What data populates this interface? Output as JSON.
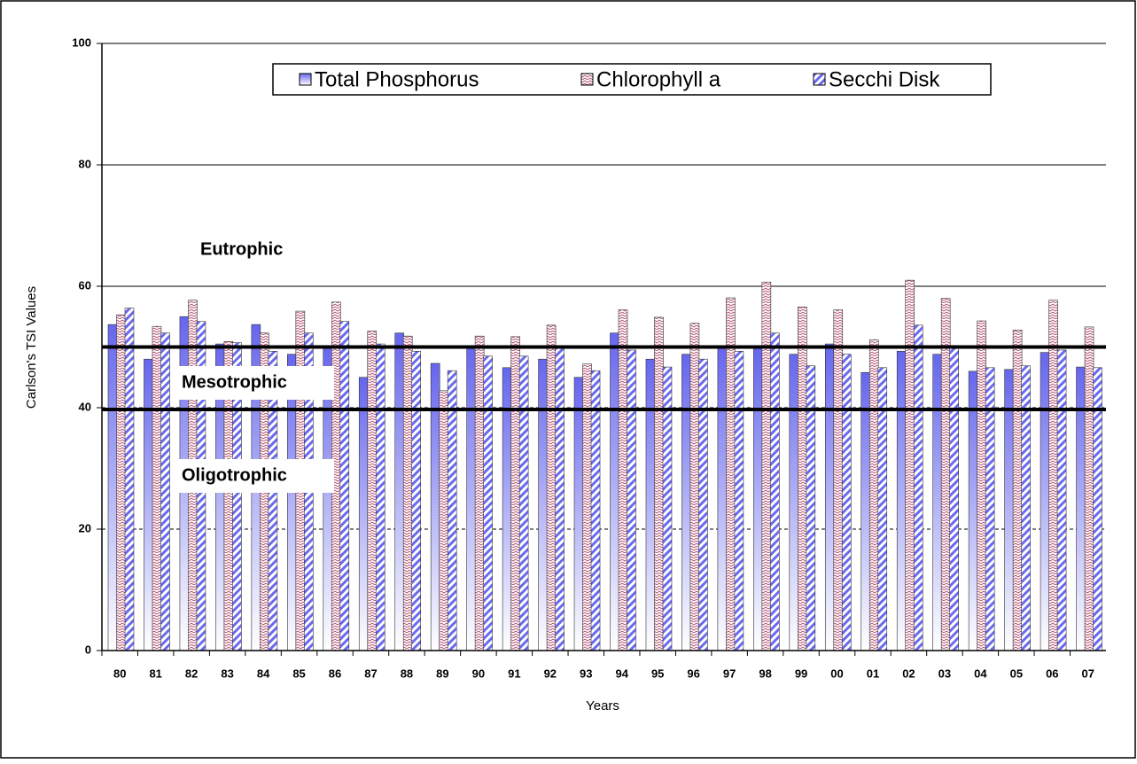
{
  "chart_data": {
    "type": "bar",
    "x_label": "Years",
    "y_label": "Carlson's TSI Values",
    "categories": [
      "80",
      "81",
      "82",
      "83",
      "84",
      "85",
      "86",
      "87",
      "88",
      "89",
      "90",
      "91",
      "92",
      "93",
      "94",
      "95",
      "96",
      "97",
      "98",
      "99",
      "00",
      "01",
      "02",
      "03",
      "04",
      "05",
      "06",
      "07"
    ],
    "series": [
      {
        "name": "Total Phosphorus",
        "color": "#6666ee",
        "values": [
          53.7,
          48.0,
          55.0,
          50.5,
          53.7,
          48.8,
          50.1,
          45.0,
          52.3,
          47.3,
          50.1,
          46.6,
          48.0,
          45.0,
          52.3,
          48.0,
          48.8,
          49.8,
          49.8,
          48.8,
          50.5,
          45.8,
          49.3,
          48.8,
          46.0,
          46.3,
          49.1,
          46.7
        ]
      },
      {
        "name": "Chlorophyll a",
        "color": "#b05070",
        "values": [
          55.3,
          53.4,
          57.7,
          50.9,
          52.3,
          55.9,
          57.4,
          52.6,
          51.8,
          42.8,
          51.8,
          51.7,
          53.6,
          47.2,
          56.1,
          54.9,
          53.9,
          58.1,
          60.7,
          56.6,
          56.1,
          51.2,
          61.0,
          58.0,
          54.3,
          52.8,
          57.7,
          53.3
        ]
      },
      {
        "name": "Secchi Disk",
        "color": "#6a6af0",
        "values": [
          56.4,
          52.3,
          54.2,
          50.7,
          49.3,
          52.3,
          54.2,
          50.5,
          49.3,
          46.1,
          48.5,
          48.5,
          50.1,
          46.1,
          49.5,
          46.7,
          48.0,
          49.3,
          52.3,
          46.9,
          48.8,
          46.6,
          53.6,
          49.8,
          46.6,
          46.9,
          49.5,
          46.6
        ]
      }
    ],
    "ylim": [
      0,
      100
    ],
    "yticks": [
      0,
      20,
      40,
      60,
      80,
      100
    ],
    "grid": true,
    "reference_lines": [
      50,
      39.7
    ],
    "annotations": [
      "Eutrophic",
      "Mesotrophic",
      "Oligotrophic"
    ],
    "legend": "top"
  }
}
